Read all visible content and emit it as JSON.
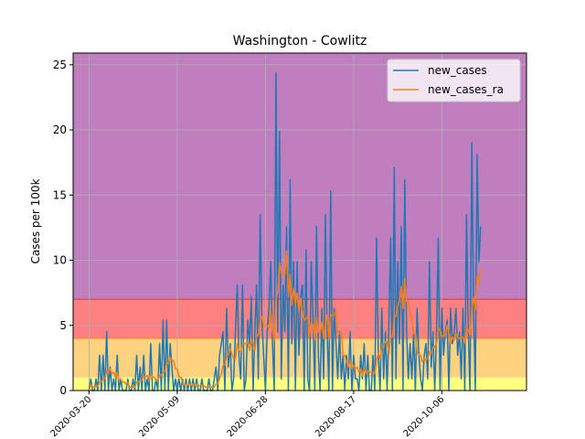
{
  "chart_data": {
    "type": "line",
    "title": "Washington - Cowlitz",
    "xlabel": "",
    "ylabel": "Cases per 100k",
    "x_range": [
      "2020-03-11",
      "2020-11-23"
    ],
    "ylim": [
      0,
      25.9
    ],
    "yticks": [
      0,
      5,
      10,
      15,
      20,
      25
    ],
    "xticks": [
      "2020-03-20",
      "2020-05-09",
      "2020-06-28",
      "2020-08-17",
      "2020-10-06"
    ],
    "grid": true,
    "legend": "top-right",
    "bands": [
      {
        "from": 0,
        "to": 1,
        "color": "#ffff80"
      },
      {
        "from": 1,
        "to": 4,
        "color": "#ffd280"
      },
      {
        "from": 4,
        "to": 7,
        "color": "#ff8080"
      },
      {
        "from": 7,
        "to": 25.9,
        "color": "#bf7fbf"
      }
    ],
    "series": [
      {
        "name": "new_cases",
        "color": "#1f77b4",
        "start": "2020-03-20",
        "step_days": 1,
        "values": [
          0,
          0.9,
          0,
          0,
          0.9,
          0,
          2.7,
          0,
          2.7,
          0,
          4.5,
          0,
          1.8,
          0,
          0.9,
          0,
          2.7,
          0,
          0.9,
          0,
          0,
          0,
          0.9,
          0,
          0,
          0.9,
          0,
          2.7,
          0,
          1.8,
          0,
          2.7,
          0,
          0.9,
          0,
          3.6,
          0,
          0,
          0.9,
          0,
          3.6,
          0,
          5.4,
          0,
          5.4,
          0,
          3.6,
          1.8,
          0,
          0.9,
          0,
          0.9,
          0,
          0.9,
          0,
          0.9,
          0,
          0.9,
          0,
          0.9,
          0,
          0.9,
          0,
          0,
          0.9,
          0,
          0,
          0,
          0.9,
          0,
          0,
          0.9,
          1.8,
          0,
          2.7,
          3.6,
          4.5,
          0,
          6.3,
          1.8,
          3.6,
          0,
          0.9,
          4.5,
          8.1,
          2.7,
          0.9,
          8.1,
          0,
          0.9,
          5.4,
          3.6,
          7.2,
          0,
          4.5,
          8.1,
          0.9,
          13.5,
          5.4,
          2.7,
          0,
          4.5,
          6.3,
          9.9,
          3.6,
          0,
          24.4,
          4.5,
          19.9,
          0.9,
          8.1,
          4.5,
          12.6,
          0,
          16.2,
          3.6,
          9.9,
          0,
          9.9,
          2.7,
          7.2,
          8.1,
          0,
          10.8,
          0.9,
          0,
          9.9,
          5.4,
          0,
          12.6,
          2.7,
          0,
          6.3,
          0.9,
          13.5,
          4.5,
          0,
          15.3,
          0,
          6.3,
          3.6,
          0.9,
          4.5,
          0.9,
          2.7,
          0,
          2.7,
          0.9,
          4.5,
          0,
          2.7,
          0.9,
          0.9,
          0,
          2.7,
          0.9,
          3.6,
          0,
          2.7,
          0,
          0,
          2.7,
          0,
          11.7,
          2.7,
          0,
          6.3,
          0.9,
          4.5,
          0,
          5.4,
          11.7,
          0,
          17.1,
          0.9,
          9.9,
          3.6,
          12.6,
          0,
          16.2,
          4.5,
          0.9,
          3.6,
          0.9,
          4.5,
          0,
          6.3,
          2.7,
          0.9,
          0,
          2.7,
          3.6,
          0.9,
          9.9,
          1.8,
          4.5,
          0,
          4.5,
          11.7,
          0,
          6.3,
          2.7,
          4.5,
          5.4,
          0,
          6.3,
          3.6,
          4.5,
          6.3,
          2.7,
          4.5,
          0.9,
          6.3,
          0,
          13.5,
          4.5,
          0,
          19,
          6.3,
          0,
          18.1,
          9.9,
          12.6
        ],
        "note": "daily values read approximately from the plot"
      },
      {
        "name": "new_cases_ra",
        "color": "#ff7f0e",
        "start": "2020-03-20",
        "step_days": 1,
        "values": []
      }
    ]
  }
}
